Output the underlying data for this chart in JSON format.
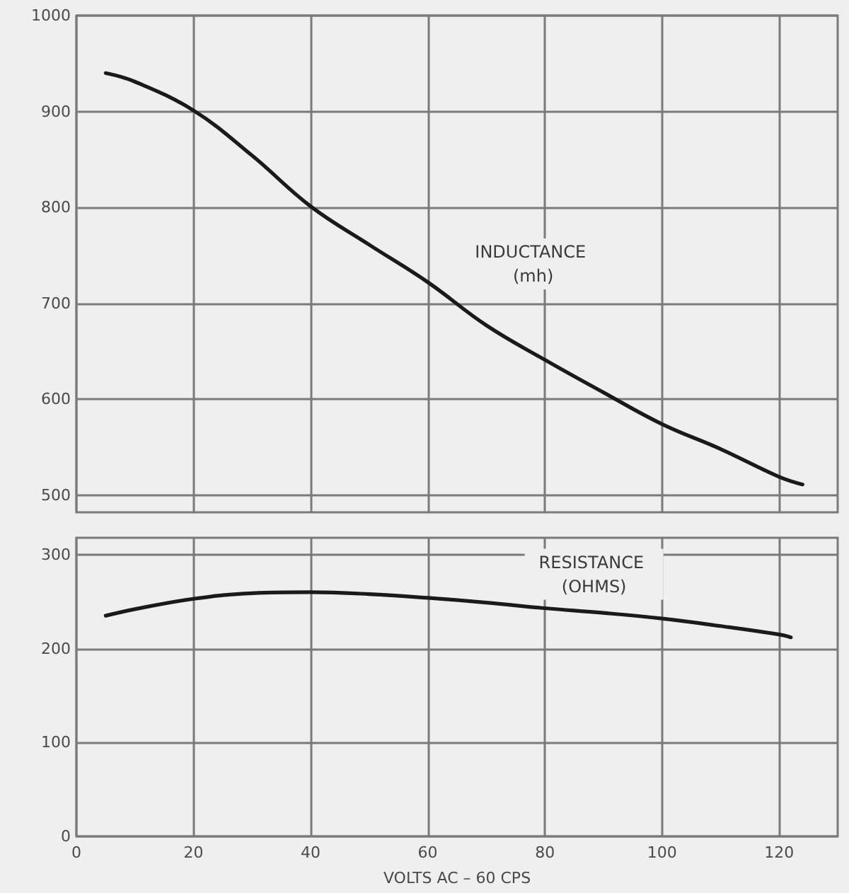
{
  "chart_data": [
    {
      "type": "line",
      "xlim": [
        0,
        130
      ],
      "xticks": [
        0,
        20,
        40,
        60,
        80,
        100,
        120
      ],
      "ylim": [
        482,
        1000
      ],
      "yticks": [
        500,
        600,
        700,
        800,
        900,
        1000
      ],
      "grid": true,
      "tick_labels": "y",
      "series": [
        {
          "name": "INDUCTANCE (mh)",
          "color": "#1a1a1a",
          "x": [
            5,
            10,
            20,
            30,
            40,
            50,
            60,
            70,
            80,
            90,
            100,
            110,
            120,
            124
          ],
          "values": [
            940,
            931,
            901,
            854,
            801,
            761,
            722,
            677,
            641,
            607,
            574,
            548,
            519,
            511
          ]
        }
      ]
    },
    {
      "type": "line",
      "xlabel": "VOLTS AC – 60 CPS",
      "xlim": [
        0,
        130
      ],
      "xticks": [
        0,
        20,
        40,
        60,
        80,
        100,
        120
      ],
      "ylim": [
        0,
        318
      ],
      "yticks": [
        0,
        100,
        200,
        300
      ],
      "grid": true,
      "series": [
        {
          "name": "RESISTANCE (OHMS)",
          "color": "#1a1a1a",
          "x": [
            5,
            10,
            20,
            30,
            40,
            50,
            60,
            70,
            80,
            90,
            100,
            110,
            120,
            122
          ],
          "values": [
            235,
            242,
            253,
            259,
            260,
            258,
            254,
            249,
            243,
            238,
            232,
            224,
            215,
            212
          ]
        }
      ]
    }
  ]
}
